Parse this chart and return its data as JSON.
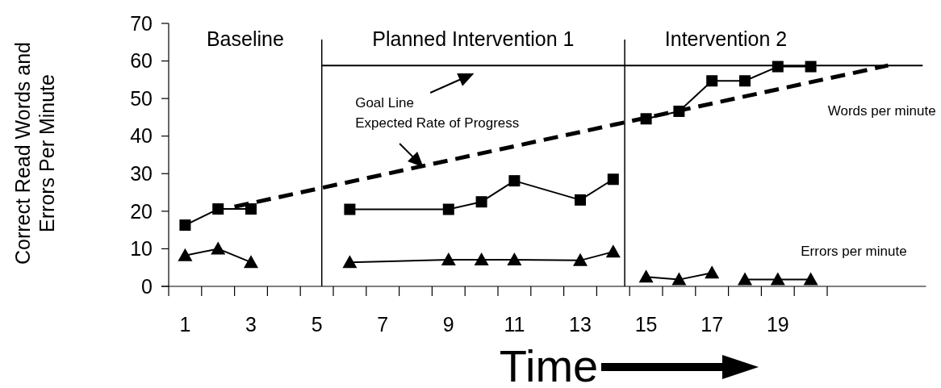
{
  "chart_data": {
    "type": "line",
    "ylabel": "Correct Read Words and Errors Per Minute",
    "xlabel": "Time",
    "xlim": [
      0.5,
      23.5
    ],
    "ylim": [
      0,
      70
    ],
    "yticks": [
      0,
      10,
      20,
      30,
      40,
      50,
      60,
      70
    ],
    "xticks": [
      {
        "value": 0.5,
        "label": null
      },
      1,
      {
        "value": 1.5,
        "label": null
      },
      {
        "value": 2.5,
        "label": null
      },
      3,
      {
        "value": 3.5,
        "label": null
      },
      {
        "value": 4.5,
        "label": null
      },
      5,
      {
        "value": 5.5,
        "label": null
      },
      {
        "value": 6.5,
        "label": null
      },
      7,
      {
        "value": 7.5,
        "label": null
      },
      {
        "value": 8.5,
        "label": null
      },
      9,
      {
        "value": 9.5,
        "label": null
      },
      {
        "value": 10.5,
        "label": null
      },
      11,
      {
        "value": 11.5,
        "label": null
      },
      {
        "value": 12.5,
        "label": null
      },
      13,
      {
        "value": 13.5,
        "label": null
      },
      {
        "value": 14.5,
        "label": null
      },
      15,
      {
        "value": 15.5,
        "label": null
      },
      {
        "value": 16.5,
        "label": null
      },
      17,
      {
        "value": 17.5,
        "label": null
      },
      {
        "value": 18.5,
        "label": null
      },
      19,
      {
        "value": 19.5,
        "label": null
      },
      {
        "value": 20.5,
        "label": null
      }
    ],
    "grid": false,
    "series": [
      {
        "color": "#000000",
        "marker": "square",
        "x": [
          1,
          2,
          3
        ],
        "values": [
          16.3,
          20.6,
          20.6
        ]
      },
      {
        "color": "#000000",
        "marker": "square",
        "x": [
          6,
          9,
          10,
          11,
          13,
          14
        ],
        "values": [
          20.5,
          20.5,
          22.5,
          28.1,
          23,
          28.5
        ]
      },
      {
        "name": "Words per minute",
        "color": "#000000",
        "marker": "square",
        "x": [
          15,
          16,
          17,
          18,
          19,
          20
        ],
        "values": [
          44.6,
          46.6,
          54.7,
          54.7,
          58.5,
          58.5
        ]
      },
      {
        "color": "#000000",
        "marker": "triangle",
        "x": [
          1,
          2,
          3
        ],
        "values": [
          8.2,
          10,
          6.4
        ]
      },
      {
        "color": "#000000",
        "marker": "triangle",
        "x": [
          6,
          9,
          10,
          11,
          13,
          14
        ],
        "values": [
          6.4,
          7.1,
          7.1,
          7.1,
          6.9,
          9.2
        ]
      },
      {
        "color": "#000000",
        "marker": "triangle",
        "x": [
          15,
          16,
          17
        ],
        "values": [
          2.5,
          1.8,
          3.6
        ]
      },
      {
        "name": "Errors per minute",
        "color": "#000000",
        "marker": "triangle",
        "x": [
          18,
          19,
          20
        ],
        "values": [
          1.8,
          1.8,
          1.8
        ]
      },
      {
        "color": "#000000",
        "marker": "none",
        "x": [
          5.15,
          23.4
        ],
        "values": [
          58.8,
          58.8
        ]
      },
      {
        "color": "#000000",
        "marker": "none",
        "line_style": "dashed",
        "x": [
          2.5,
          22.35
        ],
        "values": [
          21.2,
          58.8
        ]
      }
    ],
    "ref_lines": [
      {
        "axis": "x",
        "value": 5.15,
        "color": "#000000"
      },
      {
        "axis": "x",
        "value": 14.35,
        "color": "#000000"
      }
    ],
    "annotations": [
      "Baseline",
      "Planned Intervention 1",
      "Intervention 2",
      "Goal Line",
      {
        "text": "Expected Rate of Progress",
        "x": 8.2,
        "y": 32
      }
    ]
  }
}
